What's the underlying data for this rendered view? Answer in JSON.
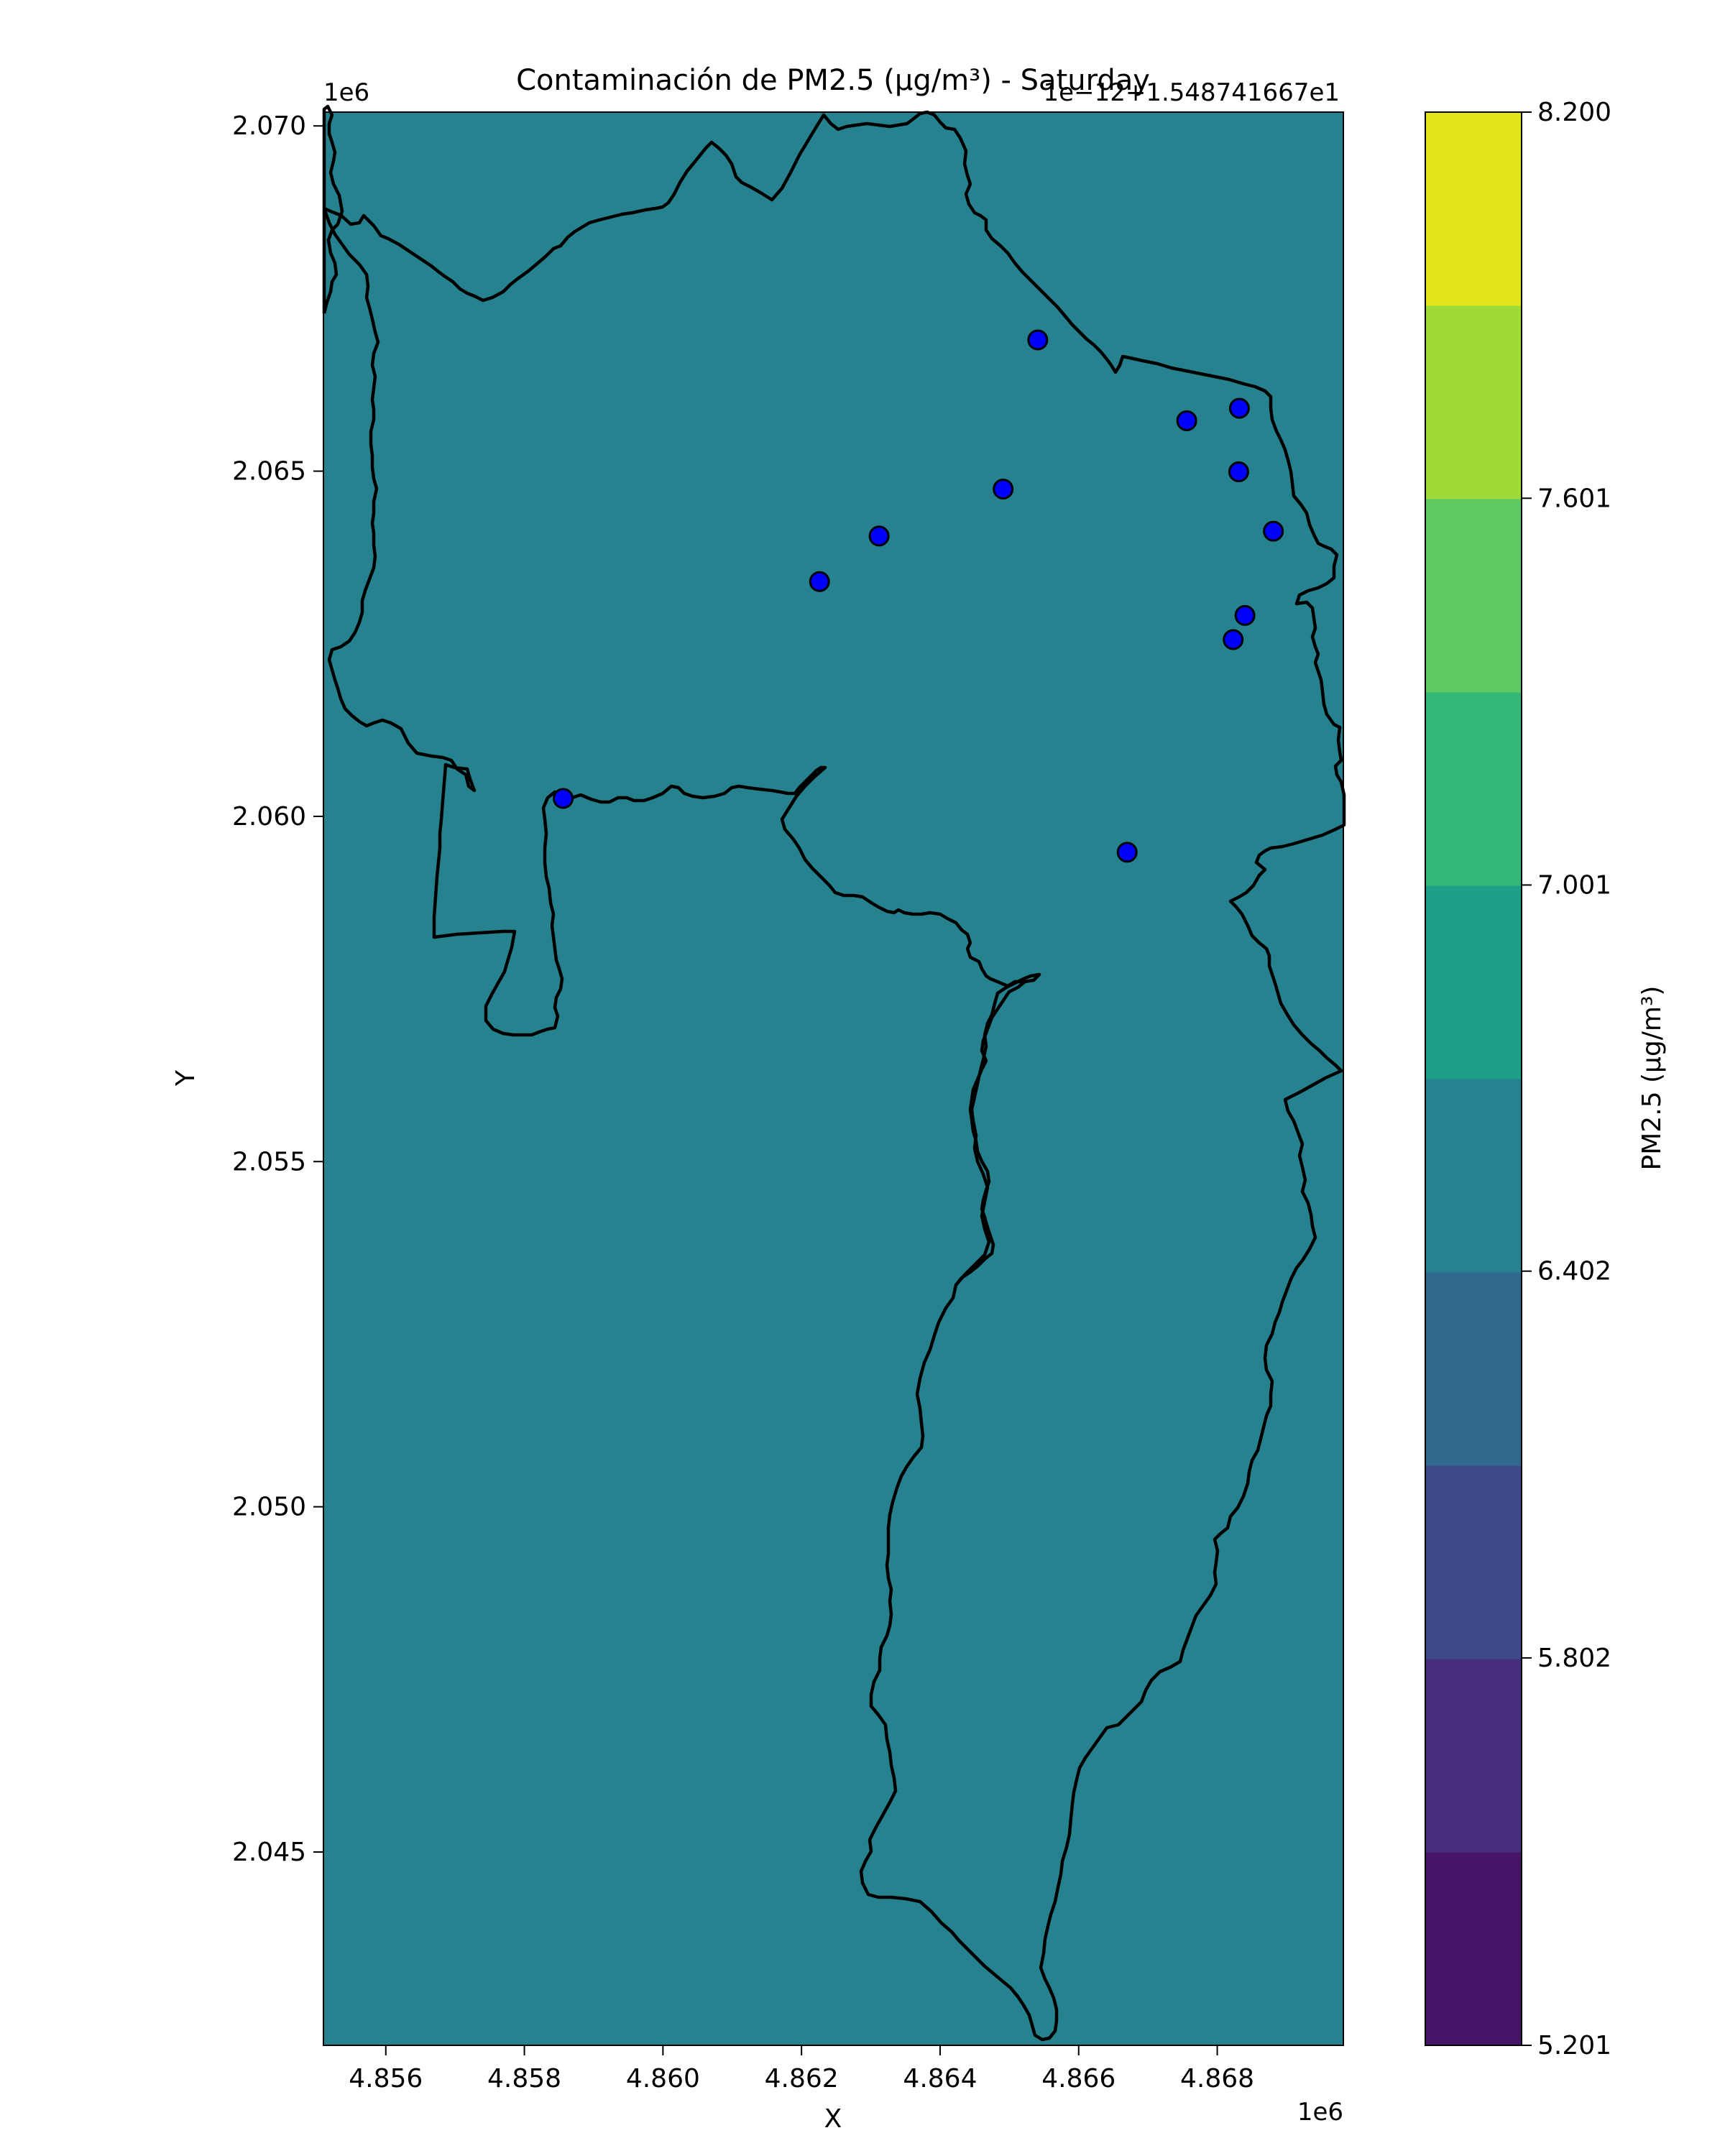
{
  "figure": {
    "title": "Contaminación de PM2.5 (µg/m³) - Saturday",
    "offset_label": "1e−12+1.548741667e1"
  },
  "chart_data": {
    "type": "heatmap",
    "title": "Contaminación de PM2.5 (µg/m³) - Saturday",
    "xlabel": "X",
    "ylabel": "Y",
    "x_multiplier": "1e6",
    "y_multiplier": "1e6",
    "xlim": [
      4.8551,
      4.86982
    ],
    "ylim": [
      2.0422,
      2.0702
    ],
    "x_ticks": [
      "4.856",
      "4.858",
      "4.860",
      "4.862",
      "4.864",
      "4.866",
      "4.868"
    ],
    "y_ticks": [
      "2.045",
      "2.050",
      "2.055",
      "2.060",
      "2.065",
      "2.070"
    ],
    "grid": false,
    "field_value_level_index": 6,
    "field_color": "#26828e",
    "colorbar": {
      "label": "PM2.5 (µg/m³)",
      "ticks": [
        "5.201",
        "5.802",
        "6.402",
        "7.001",
        "7.601",
        "8.200"
      ],
      "range": [
        5.201,
        8.2
      ],
      "level_colors": [
        "#481467",
        "#472f7d",
        "#3b518b",
        "#2c718e",
        "#21908d",
        "#27ad81",
        "#5cc863",
        "#aadc32",
        "#e1e21a",
        "#fde725"
      ],
      "visible_levels": [
        "#481467",
        "#472f7d",
        "#3e4a89",
        "#31688e",
        "#26828e",
        "#1f9e89",
        "#35b779",
        "#5ec962",
        "#a0da39",
        "#e0e418",
        "#fde725"
      ]
    },
    "stations": {
      "marker_color": "#0000ff",
      "points": [
        {
          "x": 4.86541,
          "y": 2.0669
        },
        {
          "x": 4.86756,
          "y": 2.06573
        },
        {
          "x": 4.86832,
          "y": 2.06591
        },
        {
          "x": 4.86831,
          "y": 2.06499
        },
        {
          "x": 4.86881,
          "y": 2.06413
        },
        {
          "x": 4.86491,
          "y": 2.06474
        },
        {
          "x": 4.86312,
          "y": 2.06406
        },
        {
          "x": 4.86226,
          "y": 2.0634
        },
        {
          "x": 4.8684,
          "y": 2.06291
        },
        {
          "x": 4.86823,
          "y": 2.06256
        },
        {
          "x": 4.85856,
          "y": 2.06026
        },
        {
          "x": 4.8667,
          "y": 2.05948
        }
      ]
    }
  }
}
